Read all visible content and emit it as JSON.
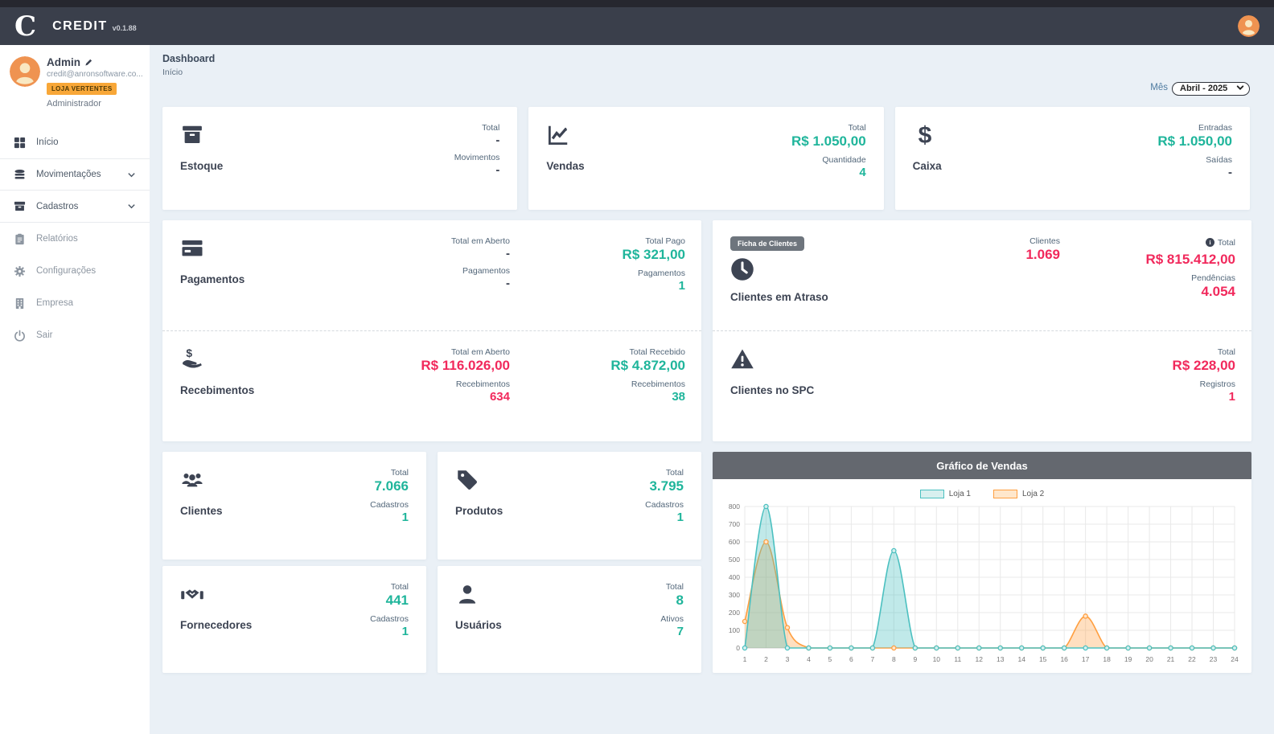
{
  "colors": {
    "green": "#1fb59b",
    "red": "#f1295c",
    "dark": "#3d4453",
    "orange": "#f8a738",
    "header-bg": "#3a3f4b",
    "main-bg": "#eaf0f6"
  },
  "header": {
    "logo": "C",
    "app_name": "CREDIT",
    "version": "v0.1.88"
  },
  "sidebar": {
    "user": {
      "name": "Admin",
      "email": "credit@anronsoftware.co...",
      "badge": "LOJA VERTENTES",
      "role": "Administrador"
    },
    "items": [
      {
        "label": "Início"
      },
      {
        "label": "Movimentações"
      },
      {
        "label": "Cadastros"
      },
      {
        "label": "Relatórios"
      },
      {
        "label": "Configurações"
      },
      {
        "label": "Empresa"
      },
      {
        "label": "Sair"
      }
    ]
  },
  "page": {
    "title": "Dashboard",
    "subtitle": "Início"
  },
  "filter": {
    "label": "Mês",
    "value": "Abril - 2025"
  },
  "cards": {
    "estoque": {
      "title": "Estoque",
      "stats": [
        {
          "label": "Total",
          "value": "-"
        },
        {
          "label": "Movimentos",
          "value": "-"
        }
      ]
    },
    "vendas": {
      "title": "Vendas",
      "stats": [
        {
          "label": "Total",
          "value": "R$ 1.050,00"
        },
        {
          "label": "Quantidade",
          "value": "4"
        }
      ]
    },
    "caixa": {
      "title": "Caixa",
      "stats": [
        {
          "label": "Entradas",
          "value": "R$ 1.050,00"
        },
        {
          "label": "Saídas",
          "value": "-"
        }
      ]
    },
    "pagamentos": {
      "title": "Pagamentos",
      "col1": [
        {
          "label": "Total em Aberto",
          "value": "-"
        },
        {
          "label": "Pagamentos",
          "value": "-"
        }
      ],
      "col2": [
        {
          "label": "Total Pago",
          "value": "R$ 321,00"
        },
        {
          "label": "Pagamentos",
          "value": "1"
        }
      ]
    },
    "recebimentos": {
      "title": "Recebimentos",
      "col1": [
        {
          "label": "Total em Aberto",
          "value": "R$ 116.026,00"
        },
        {
          "label": "Recebimentos",
          "value": "634"
        }
      ],
      "col2": [
        {
          "label": "Total Recebido",
          "value": "R$ 4.872,00"
        },
        {
          "label": "Recebimentos",
          "value": "38"
        }
      ]
    },
    "clientes_atraso": {
      "badge": "Ficha de Clientes",
      "title": "Clientes em Atraso",
      "col1": [
        {
          "label": "Clientes",
          "value": "1.069"
        }
      ],
      "col2": [
        {
          "label": "Total",
          "value": "R$ 815.412,00"
        },
        {
          "label": "Pendências",
          "value": "4.054"
        }
      ]
    },
    "clientes_spc": {
      "title": "Clientes no SPC",
      "stats": [
        {
          "label": "Total",
          "value": "R$ 228,00"
        },
        {
          "label": "Registros",
          "value": "1"
        }
      ]
    },
    "clientes": {
      "title": "Clientes",
      "stats": [
        {
          "label": "Total",
          "value": "7.066"
        },
        {
          "label": "Cadastros",
          "value": "1"
        }
      ]
    },
    "produtos": {
      "title": "Produtos",
      "stats": [
        {
          "label": "Total",
          "value": "3.795"
        },
        {
          "label": "Cadastros",
          "value": "1"
        }
      ]
    },
    "fornecedores": {
      "title": "Fornecedores",
      "stats": [
        {
          "label": "Total",
          "value": "441"
        },
        {
          "label": "Cadastros",
          "value": "1"
        }
      ]
    },
    "usuarios": {
      "title": "Usuários",
      "stats": [
        {
          "label": "Total",
          "value": "8"
        },
        {
          "label": "Ativos",
          "value": "7"
        }
      ]
    }
  },
  "chart_data": {
    "type": "area",
    "title": "Gráfico de Vendas",
    "x": [
      1,
      2,
      3,
      4,
      5,
      6,
      7,
      8,
      9,
      10,
      11,
      12,
      13,
      14,
      15,
      16,
      17,
      18,
      19,
      20,
      21,
      22,
      23,
      24
    ],
    "ylim": [
      0,
      800
    ],
    "ytick_step": 100,
    "grid": true,
    "legend_position": "top",
    "series": [
      {
        "name": "Loja 1",
        "color": "#4bc0c0",
        "fill": "rgba(75,192,192,0.35)",
        "point_fill": "#d4efee",
        "values": [
          0,
          800,
          0,
          0,
          0,
          0,
          0,
          550,
          0,
          0,
          0,
          0,
          0,
          0,
          0,
          0,
          0,
          0,
          0,
          0,
          0,
          0,
          0,
          0
        ]
      },
      {
        "name": "Loja 2",
        "color": "#ff9f40",
        "fill": "rgba(255,159,64,0.33)",
        "point_fill": "#ffe5c9",
        "values": [
          150,
          600,
          115,
          0,
          0,
          0,
          0,
          0,
          0,
          0,
          0,
          0,
          0,
          0,
          0,
          0,
          180,
          0,
          0,
          0,
          0,
          0,
          0,
          0
        ]
      }
    ]
  }
}
